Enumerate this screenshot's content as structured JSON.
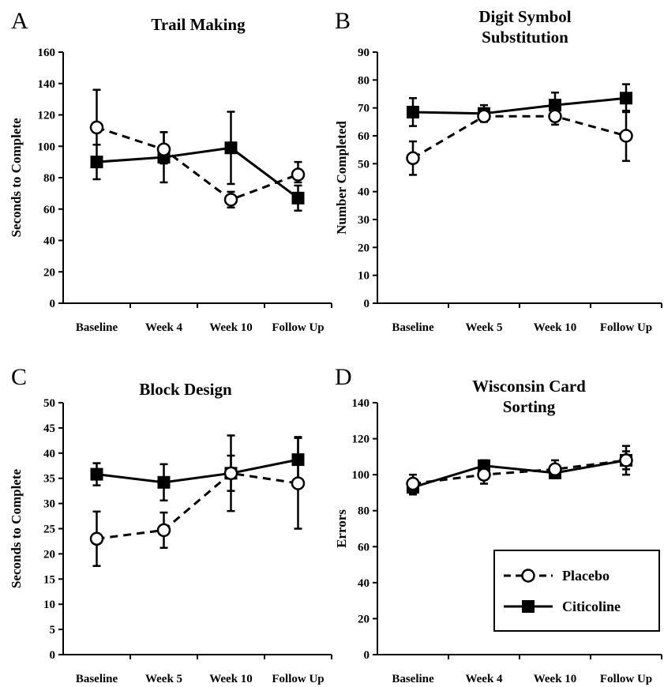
{
  "legend": {
    "placebo": "Placebo",
    "citicoline": "Citicoline"
  },
  "chart_data": [
    {
      "panel": "A",
      "type": "line",
      "title": [
        "Trail Making"
      ],
      "ylabel": "Seconds to Complete",
      "xlabel": "",
      "categories": [
        "Baseline",
        "Week 4",
        "Week 10",
        "Follow Up"
      ],
      "ylim": [
        0,
        160
      ],
      "yticks": [
        "0",
        "20",
        "40",
        "60",
        "80",
        "100",
        "120",
        "140",
        "160"
      ],
      "grid": false,
      "series": [
        {
          "name": "Placebo",
          "key": "placebo",
          "values": [
            112,
            98,
            66,
            82
          ],
          "err_low": [
            11,
            9,
            5,
            5
          ],
          "err_high": [
            24,
            11,
            5,
            8
          ]
        },
        {
          "name": "Citicoline",
          "key": "citicoline",
          "values": [
            90,
            93,
            99,
            67
          ],
          "err_low": [
            11,
            16,
            23,
            8
          ],
          "err_high": [
            11,
            16,
            23,
            8
          ]
        }
      ]
    },
    {
      "panel": "B",
      "type": "line",
      "title": [
        "Digit Symbol",
        "Substitution"
      ],
      "ylabel": "Number Completed",
      "xlabel": "",
      "categories": [
        "Baseline",
        "Week 5",
        "Week 10",
        "Follow Up"
      ],
      "ylim": [
        0,
        90
      ],
      "yticks": [
        "0",
        "10",
        "20",
        "30",
        "40",
        "50",
        "60",
        "70",
        "80",
        "90"
      ],
      "grid": false,
      "series": [
        {
          "name": "Placebo",
          "key": "placebo",
          "values": [
            52,
            67,
            67,
            60
          ],
          "err_low": [
            6,
            2,
            3,
            9
          ],
          "err_high": [
            6,
            2,
            3,
            9
          ]
        },
        {
          "name": "Citicoline",
          "key": "citicoline",
          "values": [
            68.5,
            68,
            71,
            73.5
          ],
          "err_low": [
            5,
            3,
            4.5,
            5
          ],
          "err_high": [
            5,
            3,
            4.5,
            5
          ]
        }
      ]
    },
    {
      "panel": "C",
      "type": "line",
      "title": [
        "Block Design"
      ],
      "ylabel": "Seconds to Complete",
      "xlabel": "",
      "categories": [
        "Baseline",
        "Week 5",
        "Week 10",
        "Follow Up"
      ],
      "ylim": [
        0,
        50
      ],
      "yticks": [
        "0",
        "5",
        "10",
        "15",
        "20",
        "25",
        "30",
        "35",
        "40",
        "45",
        "50"
      ],
      "grid": false,
      "series": [
        {
          "name": "Placebo",
          "key": "placebo",
          "values": [
            23,
            24.7,
            36,
            34
          ],
          "err_low": [
            5.4,
            3.5,
            7.5,
            9
          ],
          "err_high": [
            5.4,
            3.5,
            7.5,
            9
          ]
        },
        {
          "name": "Citicoline",
          "key": "citicoline",
          "values": [
            35.8,
            34.2,
            36,
            38.7
          ],
          "err_low": [
            2.2,
            3.6,
            3.5,
            4.5
          ],
          "err_high": [
            2.2,
            3.6,
            3.5,
            4.5
          ]
        }
      ]
    },
    {
      "panel": "D",
      "type": "line",
      "title": [
        "Wisconsin Card",
        "Sorting"
      ],
      "ylabel": "Errors",
      "xlabel": "",
      "categories": [
        "Baseline",
        "Week 4",
        "Week 10",
        "Follow Up"
      ],
      "ylim": [
        0,
        140
      ],
      "yticks": [
        "0",
        "20",
        "40",
        "60",
        "80",
        "100",
        "120",
        "140"
      ],
      "grid": false,
      "series": [
        {
          "name": "Placebo",
          "key": "placebo",
          "values": [
            95,
            100,
            103,
            108
          ],
          "err_low": [
            5,
            5,
            5,
            8
          ],
          "err_high": [
            5,
            5,
            5,
            8
          ]
        },
        {
          "name": "Citicoline",
          "key": "citicoline",
          "values": [
            93,
            105,
            101,
            108
          ],
          "err_low": [
            4,
            3,
            3,
            5
          ],
          "err_high": [
            4,
            3,
            3,
            5
          ]
        }
      ]
    }
  ]
}
